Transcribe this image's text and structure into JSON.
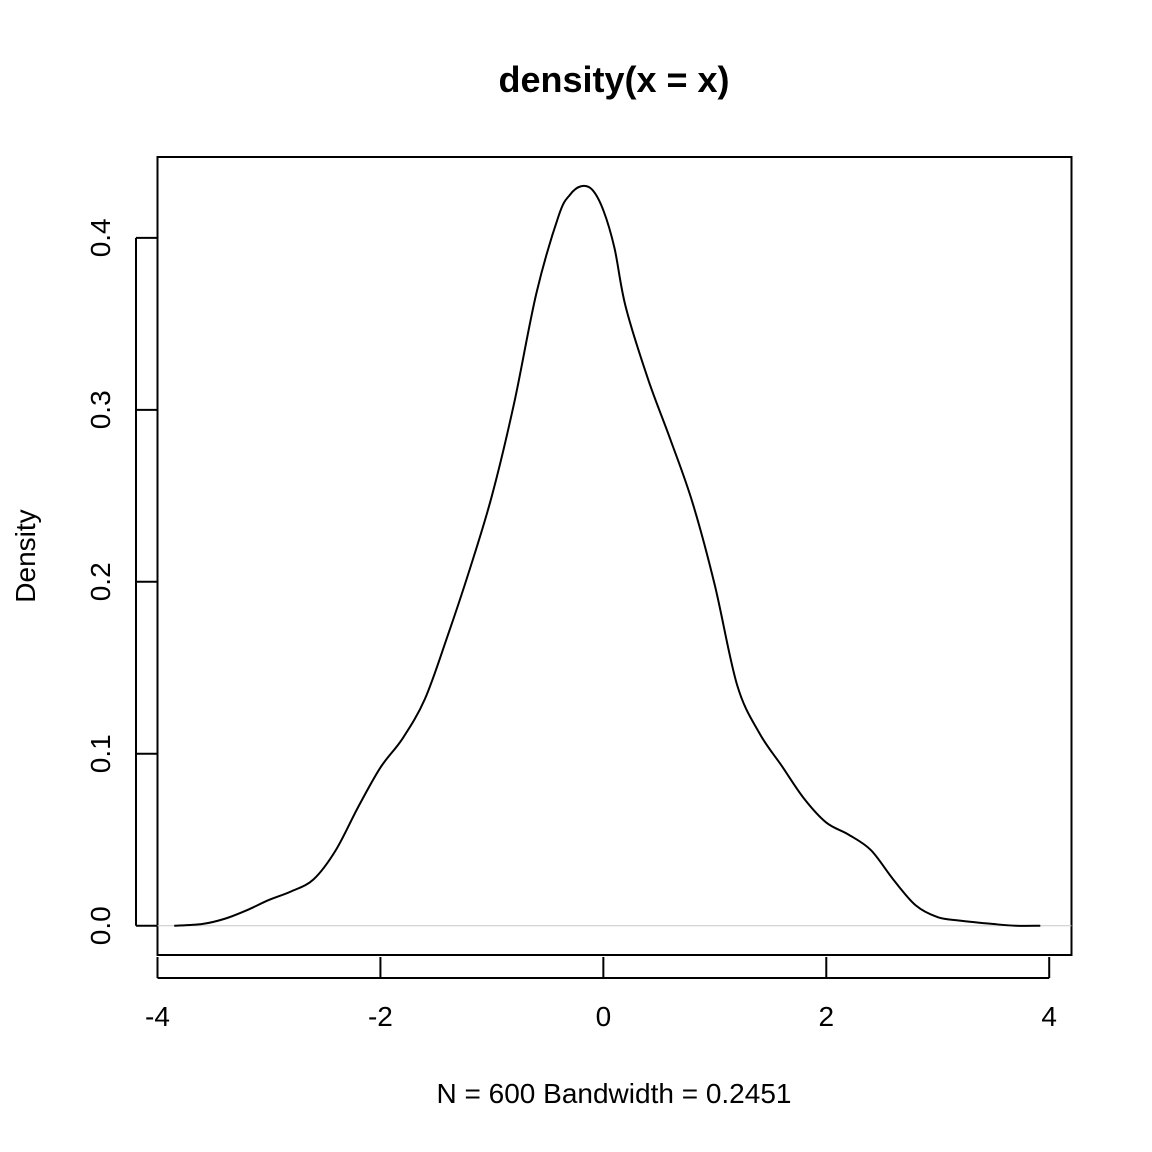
{
  "chart_data": {
    "type": "line",
    "title": "density(x = x)",
    "xlabel": "N = 600   Bandwidth = 0.2451",
    "ylabel": "Density",
    "xlim": [
      -4.0,
      4.2
    ],
    "ylim": [
      -0.017,
      0.447
    ],
    "x_ticks": [
      -4,
      -2,
      0,
      2,
      4
    ],
    "x_tick_labels": [
      "-4",
      "-2",
      "0",
      "2",
      "4"
    ],
    "y_ticks": [
      0.0,
      0.1,
      0.2,
      0.3,
      0.4
    ],
    "y_tick_labels": [
      "0.0",
      "0.1",
      "0.2",
      "0.3",
      "0.4"
    ],
    "grid": false,
    "baseline": 0,
    "series": [
      {
        "x": [
          -3.85,
          -3.6,
          -3.4,
          -3.2,
          -3.0,
          -2.8,
          -2.6,
          -2.4,
          -2.2,
          -2.0,
          -1.8,
          -1.6,
          -1.4,
          -1.2,
          -1.0,
          -0.8,
          -0.6,
          -0.4,
          -0.3,
          -0.2,
          -0.1,
          0.0,
          0.1,
          0.2,
          0.4,
          0.6,
          0.8,
          1.0,
          1.2,
          1.4,
          1.6,
          1.8,
          2.0,
          2.2,
          2.4,
          2.6,
          2.8,
          3.0,
          3.2,
          3.5,
          3.7,
          3.92
        ],
        "y": [
          0.0,
          0.001,
          0.004,
          0.009,
          0.015,
          0.02,
          0.027,
          0.044,
          0.069,
          0.092,
          0.109,
          0.132,
          0.168,
          0.207,
          0.25,
          0.304,
          0.368,
          0.413,
          0.425,
          0.43,
          0.428,
          0.416,
          0.394,
          0.36,
          0.318,
          0.283,
          0.246,
          0.198,
          0.14,
          0.112,
          0.093,
          0.074,
          0.06,
          0.053,
          0.044,
          0.027,
          0.012,
          0.005,
          0.003,
          0.001,
          0.0,
          0.0
        ]
      }
    ]
  }
}
